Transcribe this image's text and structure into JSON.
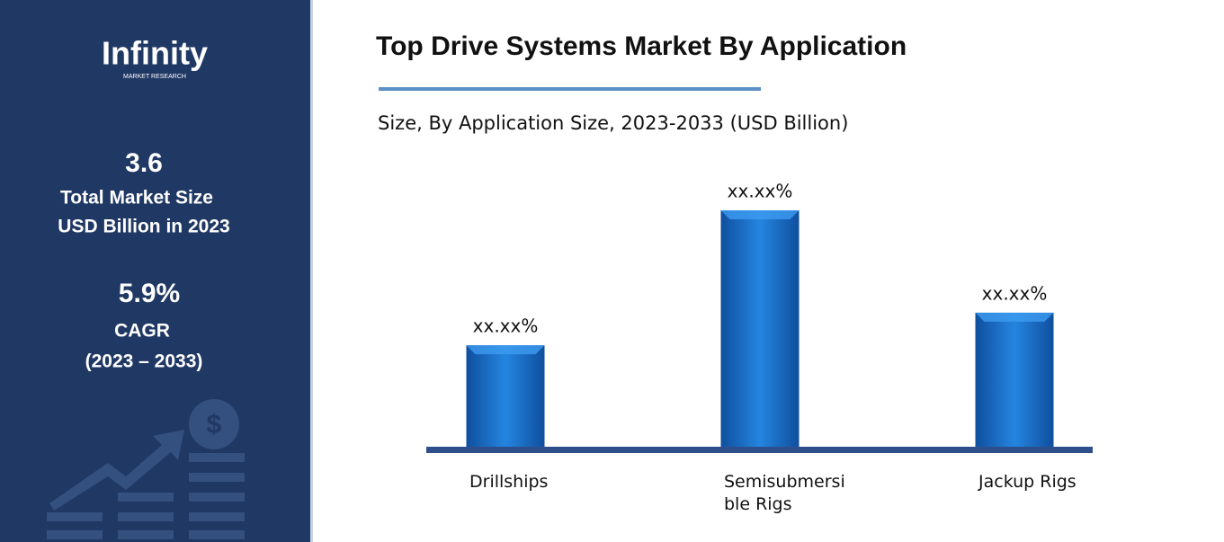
{
  "sidebar": {
    "logo": "Infinity",
    "logo_sub": "MARKET RESEARCH",
    "market_size": "3.6",
    "market_size_label_1": "Total Market Size",
    "market_size_label_2": "USD Billion in 2023",
    "cagr": "5.9%",
    "cagr_label": "CAGR",
    "cagr_period": "(2023 – 2033)"
  },
  "chart_data": {
    "type": "bar",
    "title": "Top Drive Systems Market By Application",
    "subtitle": "Size, By Application Size, 2023-2033 (USD Billion)",
    "categories": [
      "Drillships",
      "Semisubmersible Rigs",
      "Jackup Rigs"
    ],
    "values": [
      21.5,
      50.1,
      28.4
    ],
    "value_labels": [
      "xx.xx%",
      "xx.xx%",
      "xx.xx%"
    ],
    "color": "#1a6fc9"
  }
}
